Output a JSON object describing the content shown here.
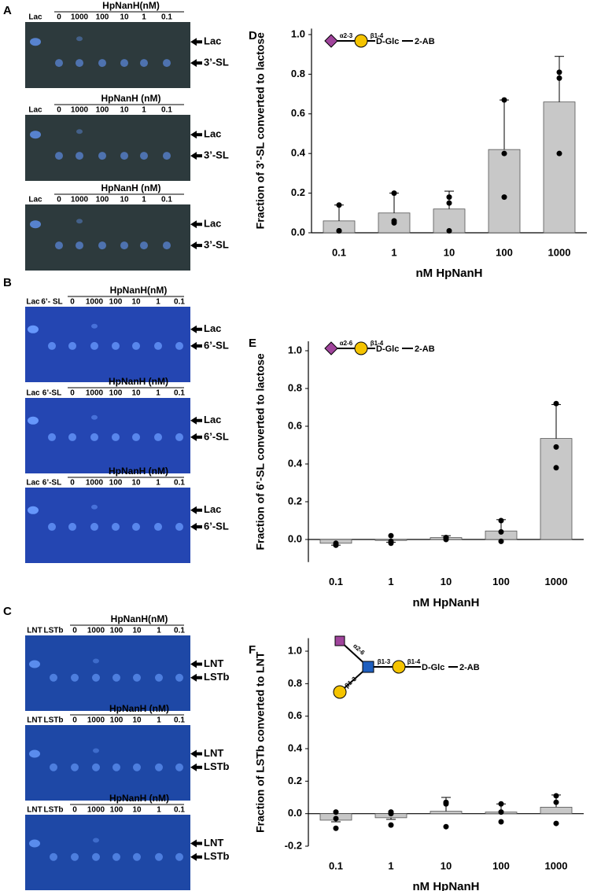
{
  "panels": [
    {
      "letter": "A",
      "strips": [
        {
          "header": "HpNanH(nM)",
          "lanes": [
            "Lac",
            "0",
            "1000",
            "100",
            "10",
            "1",
            "0.1"
          ],
          "arrows": [
            "Lac",
            "3’-SL"
          ]
        },
        {
          "header": "HpNanH (nM)",
          "lanes": [
            "Lac",
            "0",
            "1000",
            "100",
            "10",
            "1",
            "0.1"
          ],
          "arrows": [
            "Lac",
            "3’-SL"
          ]
        },
        {
          "header": "HpNanH (nM)",
          "lanes": [
            "Lac",
            "0",
            "1000",
            "100",
            "10",
            "1",
            "0.1"
          ],
          "arrows": [
            "Lac",
            "3’-SL"
          ]
        }
      ]
    },
    {
      "letter": "B",
      "strips": [
        {
          "header": "HpNanH(nM)",
          "lanes": [
            "Lac",
            "6’- SL",
            "0",
            "1000",
            "100",
            "10",
            "1",
            "0.1"
          ],
          "arrows": [
            "Lac",
            "6’-SL"
          ]
        },
        {
          "header": "HpNanH (nM)",
          "lanes": [
            "Lac",
            "6’-SL",
            "0",
            "1000",
            "100",
            "10",
            "1",
            "0.1"
          ],
          "arrows": [
            "Lac",
            "6’-SL"
          ]
        },
        {
          "header": "HpNanH (nM)",
          "lanes": [
            "Lac",
            "6’-SL",
            "0",
            "1000",
            "100",
            "10",
            "1",
            "0.1"
          ],
          "arrows": [
            "Lac",
            "6’-SL"
          ]
        }
      ]
    },
    {
      "letter": "C",
      "strips": [
        {
          "header": "HpNanH(nM)",
          "lanes": [
            "LNT",
            "LSTb",
            "0",
            "1000",
            "100",
            "10",
            "1",
            "0.1"
          ],
          "arrows": [
            "LNT",
            "LSTb"
          ]
        },
        {
          "header": "HpNanH (nM)",
          "lanes": [
            "LNT",
            "LSTb",
            "0",
            "1000",
            "100",
            "10",
            "1",
            "0.1"
          ],
          "arrows": [
            "LNT",
            "LSTb"
          ]
        },
        {
          "header": "HpNanH (nM)",
          "lanes": [
            "LNT",
            "LSTb",
            "0",
            "1000",
            "100",
            "10",
            "1",
            "0.1"
          ],
          "arrows": [
            "LNT",
            "LSTb"
          ]
        }
      ]
    }
  ],
  "chart_data": [
    {
      "letter": "D",
      "type": "bar",
      "glycan": [
        "α2-3",
        "β1-4",
        "D-Glc",
        "2-AB"
      ],
      "ylabel": "Fraction of 3’-SL converted to lactose",
      "xlabel": "nM HpNanH",
      "categories": [
        "0.1",
        "1",
        "10",
        "100",
        "1000"
      ],
      "values": [
        0.06,
        0.1,
        0.12,
        0.42,
        0.66
      ],
      "errors": [
        0.08,
        0.1,
        0.09,
        0.25,
        0.23
      ],
      "points": [
        [
          0.14,
          0.01,
          0.01
        ],
        [
          0.2,
          0.05,
          0.06
        ],
        [
          0.18,
          0.15,
          0.01
        ],
        [
          0.67,
          0.4,
          0.18
        ],
        [
          0.81,
          0.78,
          0.4
        ]
      ],
      "color": "#c8c8c8",
      "ylim": [
        0,
        1.03
      ],
      "yticks": [
        {
          "value": 0,
          "label": "0.0"
        },
        0.2,
        0.4,
        0.6,
        0.8,
        {
          "value": 1,
          "label": "1.0"
        }
      ]
    },
    {
      "letter": "E",
      "type": "bar",
      "glycan": [
        "α2-6",
        "β1-4",
        "D-Glc",
        "2-AB"
      ],
      "ylabel": "Fraction of 6’-SL converted to lactose",
      "xlabel": "nM HpNanH",
      "categories": [
        "0.1",
        "1",
        "10",
        "100",
        "1000"
      ],
      "values": [
        -0.02,
        -0.005,
        0.01,
        0.045,
        0.535
      ],
      "errors": [
        0.01,
        0.01,
        0.01,
        0.06,
        0.18
      ],
      "points": [
        [
          -0.03,
          -0.02,
          -0.03
        ],
        [
          0.02,
          -0.02,
          -0.01
        ],
        [
          0.01,
          0,
          0.01
        ],
        [
          0.1,
          0.04,
          -0.01
        ],
        [
          0.72,
          0.49,
          0.38
        ]
      ],
      "color": "#c8c8c8",
      "ylim": [
        -0.12,
        1.05
      ],
      "yticks": [
        {
          "value": 0,
          "label": "0.0"
        },
        0.2,
        0.4,
        0.6,
        0.8,
        {
          "value": 1,
          "label": "1.0"
        }
      ]
    },
    {
      "letter": "F",
      "type": "bar",
      "glycan": [
        "α2-6",
        "β1-3",
        "β1-3",
        "β1-4",
        "D-Glc",
        "2-AB"
      ],
      "ylabel": "Fraction of LSTb converted to LNT",
      "xlabel": "nM HpNanH",
      "categories": [
        "0.1",
        "1",
        "10",
        "100",
        "1000"
      ],
      "values": [
        -0.04,
        -0.025,
        0.015,
        0.01,
        0.04
      ],
      "errors": [
        0.01,
        0.01,
        0.085,
        0.05,
        0.075
      ],
      "points": [
        [
          0.01,
          -0.09,
          -0.03
        ],
        [
          0.01,
          -0.07,
          0
        ],
        [
          0.07,
          -0.08,
          0.06
        ],
        [
          0.06,
          -0.05,
          0.01
        ],
        [
          0.11,
          0.07,
          -0.06
        ]
      ],
      "color": "#c8c8c8",
      "ylim": [
        -0.2,
        1.08
      ],
      "yticks": [
        -0.2,
        {
          "value": 0,
          "label": "0.0"
        },
        0.2,
        0.4,
        0.6,
        0.8,
        {
          "value": 1,
          "label": "1.0"
        }
      ]
    }
  ]
}
